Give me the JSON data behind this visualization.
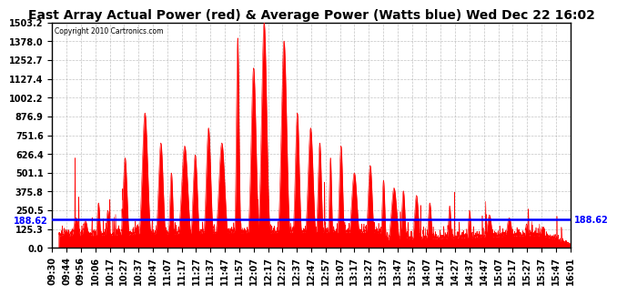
{
  "title": "East Array Actual Power (red) & Average Power (Watts blue) Wed Dec 22 16:02",
  "copyright": "Copyright 2010 Cartronics.com",
  "yticks": [
    0.0,
    125.3,
    250.5,
    375.8,
    501.1,
    626.4,
    751.6,
    876.9,
    1002.2,
    1127.4,
    1252.7,
    1378.0,
    1503.2
  ],
  "ymin": 0.0,
  "ymax": 1503.2,
  "avg_power": 188.62,
  "avg_label": "188.62",
  "xtick_labels": [
    "09:30",
    "09:44",
    "09:56",
    "10:06",
    "10:17",
    "10:27",
    "10:37",
    "10:47",
    "11:07",
    "11:17",
    "11:27",
    "11:37",
    "11:47",
    "11:57",
    "12:07",
    "12:17",
    "12:27",
    "12:37",
    "12:47",
    "12:57",
    "13:07",
    "13:17",
    "13:27",
    "13:37",
    "13:47",
    "13:57",
    "14:07",
    "14:17",
    "14:27",
    "14:37",
    "14:47",
    "15:07",
    "15:17",
    "15:27",
    "15:37",
    "15:47",
    "16:01"
  ],
  "bg_color": "#ffffff",
  "plot_bg_color": "#ffffff",
  "grid_color": "#aaaaaa",
  "red_color": "#ff0000",
  "blue_color": "#0000ff",
  "border_color": "#000000",
  "title_fontsize": 10,
  "tick_fontsize": 7,
  "spike_times_min": [
    10,
    18,
    25,
    35,
    42,
    55,
    70,
    82,
    90,
    100,
    108,
    118,
    128,
    140,
    152,
    160,
    175,
    185,
    195,
    202,
    210,
    218,
    228,
    240,
    250,
    258,
    265,
    275,
    285,
    300,
    315,
    330,
    345,
    358,
    370,
    380
  ],
  "spike_heights": [
    120,
    200,
    180,
    300,
    250,
    600,
    900,
    700,
    500,
    680,
    620,
    800,
    700,
    1400,
    1200,
    1503,
    1380,
    900,
    800,
    700,
    600,
    680,
    500,
    550,
    450,
    400,
    380,
    350,
    300,
    280,
    250,
    220,
    200,
    160,
    140,
    120
  ],
  "total_minutes": 391
}
